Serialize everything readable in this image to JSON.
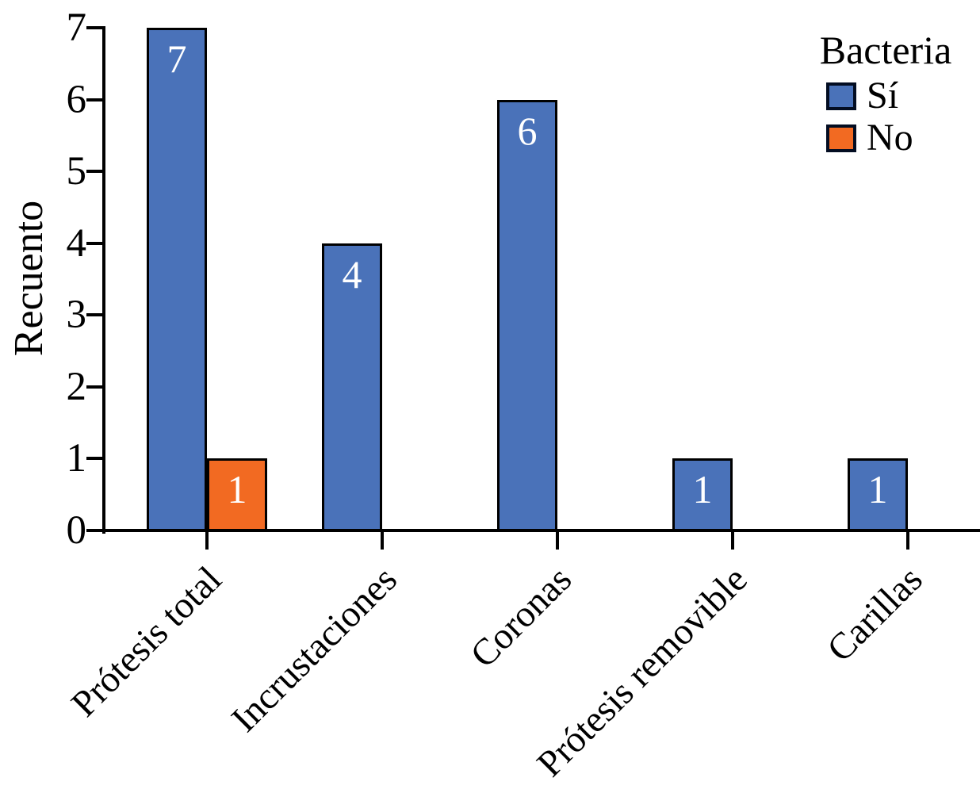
{
  "chart_data": {
    "type": "bar",
    "title": "",
    "xlabel": "",
    "ylabel": "Recuento",
    "ylim": [
      0,
      7
    ],
    "yticks": [
      0,
      1,
      2,
      3,
      4,
      5,
      6,
      7
    ],
    "categories": [
      "Prótesis total",
      "Incrustaciones",
      "Coronas",
      "Prótesis removible",
      "Carillas"
    ],
    "series": [
      {
        "name": "Sí",
        "color": "#4a72b9",
        "values": [
          7,
          4,
          6,
          1,
          1
        ]
      },
      {
        "name": "No",
        "color": "#f26a22",
        "values": [
          1,
          0,
          0,
          0,
          0
        ]
      }
    ],
    "legend": {
      "title": "Bacteria",
      "position": "top-right"
    },
    "bar_labels": true,
    "bar_label_color": "#ffffff",
    "axis_color": "#000000",
    "grid": false
  }
}
